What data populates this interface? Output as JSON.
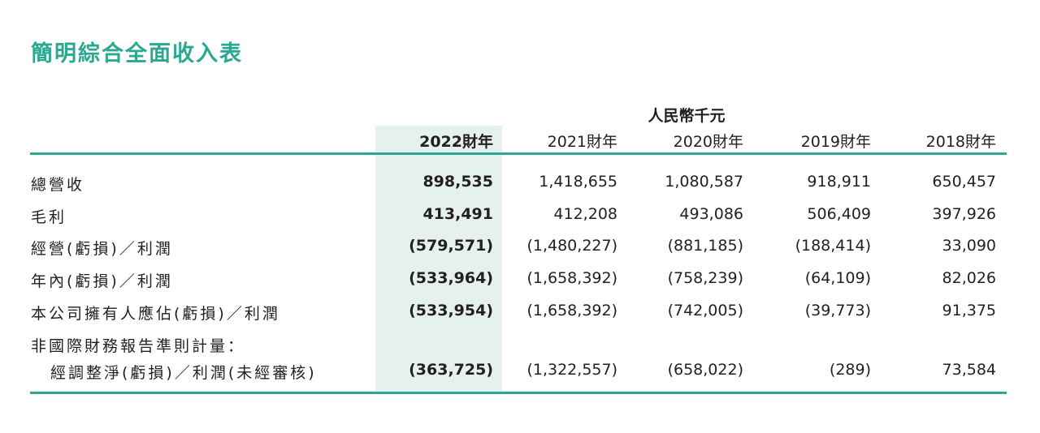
{
  "header": {
    "title": "簡明綜合全面收入表",
    "unit": "人民幣千元"
  },
  "table": {
    "columns": [
      "2022財年",
      "2021財年",
      "2020財年",
      "2019財年",
      "2018財年"
    ],
    "rows": [
      {
        "label": [
          "總營收"
        ],
        "values": [
          "898,535",
          "1,418,655",
          "1,080,587",
          "918,911",
          "650,457"
        ]
      },
      {
        "label": [
          "毛利"
        ],
        "values": [
          "413,491",
          "412,208",
          "493,086",
          "506,409",
          "397,926"
        ]
      },
      {
        "label": [
          "經營(虧損)／利潤"
        ],
        "values": [
          "(579,571)",
          "(1,480,227)",
          "(881,185)",
          "(188,414)",
          "33,090"
        ]
      },
      {
        "label": [
          "年內(虧損)／利潤"
        ],
        "values": [
          "(533,964)",
          "(1,658,392)",
          "(758,239)",
          "(64,109)",
          "82,026"
        ]
      },
      {
        "label": [
          "本公司擁有人應佔(虧損)／利潤"
        ],
        "values": [
          "(533,954)",
          "(1,658,392)",
          "(742,005)",
          "(39,773)",
          "91,375"
        ]
      },
      {
        "label": [
          "非國際財務報告準則計量：",
          "經調整淨(虧損)／利潤(未經審核)"
        ],
        "values": [
          "(363,725)",
          "(1,322,557)",
          "(658,022)",
          "(289)",
          "73,584"
        ]
      }
    ]
  }
}
